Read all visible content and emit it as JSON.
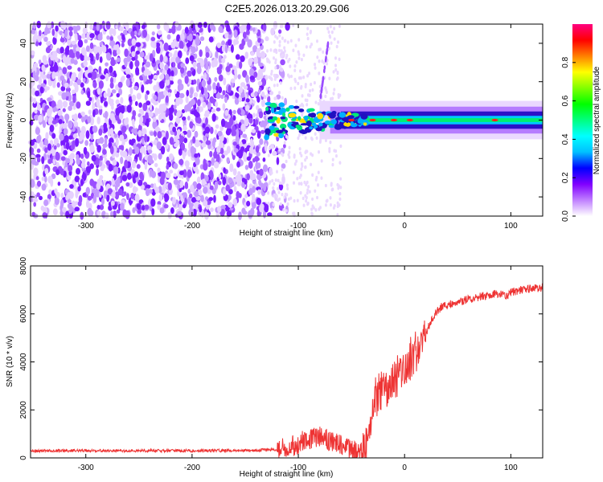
{
  "title": "C2E5.2026.013.20.29.G06",
  "chart_data": [
    {
      "type": "heatmap",
      "title": "C2E5.2026.013.20.29.G06",
      "xlabel": "Height of straight line (km)",
      "ylabel": "Frequency (Hz)",
      "xlim": [
        -352,
        130
      ],
      "ylim": [
        -50,
        50
      ],
      "xticks": [
        -300,
        -200,
        -100,
        0,
        100
      ],
      "yticks": [
        -40,
        -20,
        0,
        20,
        40
      ],
      "colorbar": {
        "label": "Normalized spectral amplitude",
        "range": [
          0,
          1
        ],
        "ticks": [
          0.0,
          0.2,
          0.4,
          0.6,
          0.8
        ],
        "colors": [
          "#ffffff",
          "#c080ff",
          "#8000ff",
          "#0000ff",
          "#00c0ff",
          "#00ffff",
          "#00ff80",
          "#00ff00",
          "#80ff00",
          "#ffff00",
          "#ff8000",
          "#ff0000",
          "#ff0080"
        ]
      },
      "features": {
        "noise_region_x": [
          -352,
          -130
        ],
        "tone_start_x": -80,
        "tone_frequency": 0
      }
    },
    {
      "type": "line",
      "xlabel": "Height of straight line (km)",
      "ylabel": "SNR (10 * v/v)",
      "xlim": [
        -352,
        130
      ],
      "ylim": [
        0,
        8000
      ],
      "xticks": [
        -300,
        -200,
        -100,
        0,
        100
      ],
      "yticks": [
        0,
        2000,
        4000,
        6000,
        8000
      ],
      "color": "#ee3333",
      "series": [
        {
          "name": "SNR",
          "x": [
            -352,
            -300,
            -250,
            -200,
            -150,
            -120,
            -105,
            -100,
            -90,
            -80,
            -70,
            -60,
            -50,
            -45,
            -40,
            -35,
            -32,
            -28,
            -25,
            -20,
            -15,
            -10,
            -5,
            0,
            5,
            10,
            15,
            20,
            25,
            30,
            35,
            40,
            50,
            60,
            70,
            80,
            90,
            95,
            100,
            110,
            120,
            130
          ],
          "y": [
            300,
            300,
            300,
            300,
            310,
            350,
            500,
            600,
            800,
            900,
            700,
            500,
            300,
            250,
            300,
            400,
            1500,
            2500,
            2700,
            2900,
            3000,
            3200,
            3500,
            3800,
            4100,
            4400,
            4700,
            5200,
            5700,
            6100,
            6300,
            6400,
            6500,
            6600,
            6700,
            6800,
            6850,
            6700,
            6900,
            7000,
            7050,
            7100
          ]
        }
      ]
    }
  ]
}
